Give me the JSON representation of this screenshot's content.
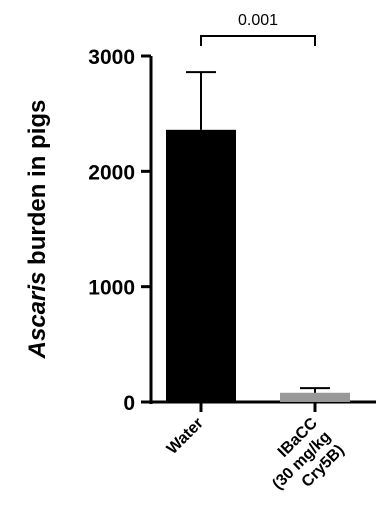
{
  "chart_data": {
    "type": "bar",
    "ylabel_italic": "Ascaris",
    "ylabel_rest": " burden in pigs",
    "categories": [
      {
        "label_lines": [
          "Water"
        ]
      },
      {
        "label_lines": [
          "IBaCC",
          "(30 mg/kg",
          "Cry5B)"
        ]
      }
    ],
    "values": [
      2360,
      80
    ],
    "errors": [
      500,
      40
    ],
    "colors": [
      "#000000",
      "#999999"
    ],
    "ylim": [
      0,
      3000
    ],
    "yticks": [
      "0",
      "1000",
      "2000",
      "3000"
    ],
    "significance": {
      "label": "0.001",
      "between": [
        0,
        1
      ]
    }
  }
}
